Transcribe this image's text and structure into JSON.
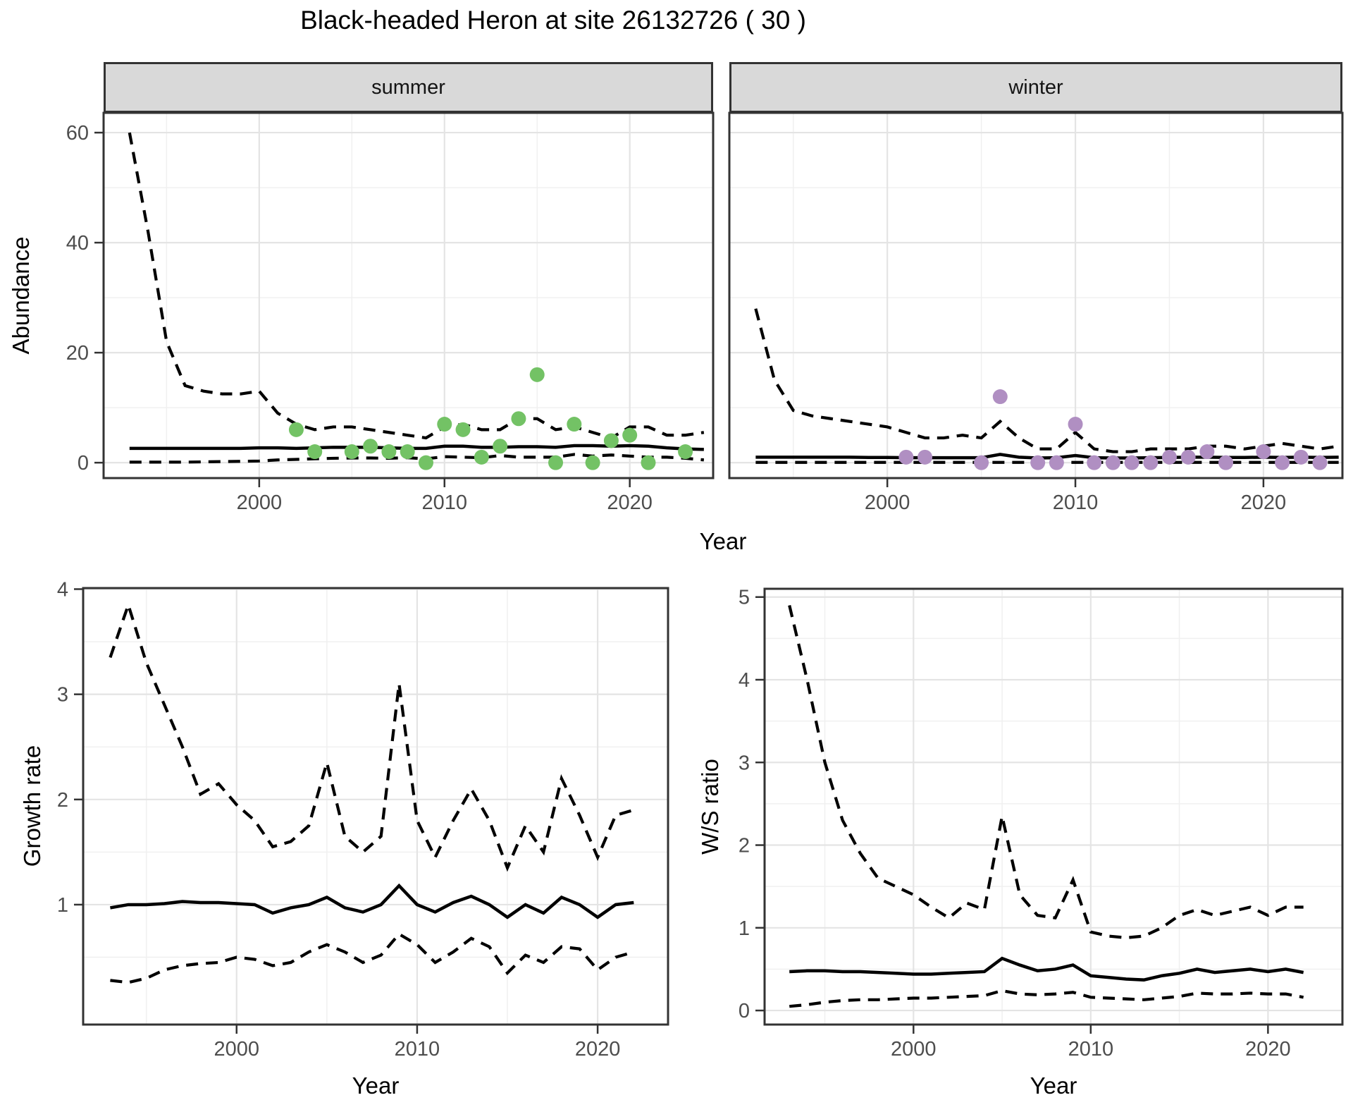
{
  "title": "Black-headed Heron at site 26132726 ( 30 )",
  "colors": {
    "summer_point": "#73c265",
    "winter_point": "#b08fc2",
    "line": "#000000",
    "strip_bg": "#d9d9d9",
    "grid_major": "#e4e4e4",
    "grid_minor": "#f0f0f0",
    "panel_border": "#333333",
    "tick_label": "#4d4d4d"
  },
  "chart_data": [
    {
      "id": "abundance_summer",
      "type": "line+scatter",
      "facet_label": "summer",
      "xlabel": "Year",
      "ylabel": "Abundance",
      "x_ticks": [
        2000,
        2010,
        2020
      ],
      "y_ticks": [
        0,
        20,
        40,
        60
      ],
      "xlim": [
        1991.6,
        2024.5
      ],
      "ylim": [
        -2.8,
        63.6
      ],
      "grid": true,
      "legend_position": "none",
      "line_years": [
        1993,
        1994,
        1995,
        1996,
        1997,
        1998,
        1999,
        2000,
        2001,
        2002,
        2003,
        2004,
        2005,
        2006,
        2007,
        2008,
        2009,
        2010,
        2011,
        2012,
        2013,
        2014,
        2015,
        2016,
        2017,
        2018,
        2019,
        2020,
        2021,
        2022,
        2023,
        2024
      ],
      "series": [
        {
          "name": "upper_95ci",
          "style": "dashed",
          "values": [
            60,
            42,
            22,
            14,
            13,
            12.5,
            12.5,
            13,
            9,
            7,
            6,
            6.5,
            6.5,
            6,
            5.5,
            5,
            4.5,
            6.5,
            7,
            6,
            6,
            8,
            8,
            6,
            6.5,
            5.5,
            4.5,
            6.5,
            6.5,
            5,
            5,
            5.5
          ]
        },
        {
          "name": "median",
          "style": "solid",
          "values": [
            2.6,
            2.6,
            2.6,
            2.6,
            2.6,
            2.6,
            2.6,
            2.7,
            2.7,
            2.6,
            2.7,
            2.8,
            2.8,
            2.8,
            2.7,
            2.6,
            2.6,
            3.0,
            3.0,
            2.8,
            2.8,
            2.9,
            2.9,
            2.8,
            3.1,
            3.1,
            3.0,
            3.1,
            3.0,
            2.7,
            2.5,
            2.4
          ]
        },
        {
          "name": "lower_95ci",
          "style": "dashed",
          "values": [
            0.1,
            0.1,
            0.1,
            0.1,
            0.15,
            0.2,
            0.25,
            0.3,
            0.5,
            0.6,
            0.7,
            0.8,
            0.85,
            0.85,
            0.8,
            0.9,
            0.7,
            1.1,
            1.0,
            0.9,
            1.3,
            1.0,
            1.0,
            1.0,
            1.5,
            1.2,
            1.4,
            1.2,
            1.0,
            1.0,
            0.8,
            0.5
          ]
        }
      ],
      "points": {
        "name": "observed_counts",
        "color": "#73c265",
        "years": [
          2002,
          2003,
          2005,
          2006,
          2007,
          2008,
          2009,
          2010,
          2011,
          2012,
          2013,
          2014,
          2015,
          2016,
          2017,
          2018,
          2019,
          2020,
          2021,
          2023
        ],
        "values": [
          6,
          2,
          2,
          3,
          2,
          2,
          0,
          7,
          6,
          1,
          3,
          8,
          16,
          0,
          7,
          0,
          4,
          5,
          0,
          2
        ]
      }
    },
    {
      "id": "abundance_winter",
      "type": "line+scatter",
      "facet_label": "winter",
      "xlabel": "Year",
      "ylabel": "Abundance",
      "x_ticks": [
        2000,
        2010,
        2020
      ],
      "y_ticks": [
        0,
        20,
        40,
        60
      ],
      "xlim": [
        1991.6,
        2024.2
      ],
      "ylim": [
        -2.8,
        63.6
      ],
      "grid": true,
      "legend_position": "none",
      "line_years": [
        1993,
        1994,
        1995,
        1996,
        1997,
        1998,
        1999,
        2000,
        2001,
        2002,
        2003,
        2004,
        2005,
        2006,
        2007,
        2008,
        2009,
        2010,
        2011,
        2012,
        2013,
        2014,
        2015,
        2016,
        2017,
        2018,
        2019,
        2020,
        2021,
        2022,
        2023,
        2024
      ],
      "series": [
        {
          "name": "upper_95ci",
          "style": "dashed",
          "values": [
            28,
            15,
            9.5,
            8.5,
            8,
            7.5,
            7,
            6.5,
            5.5,
            4.5,
            4.5,
            5,
            4.5,
            7.5,
            4.5,
            2.5,
            2.5,
            5.5,
            2.5,
            2,
            2,
            2.5,
            2.5,
            2.5,
            3,
            3,
            2.5,
            3,
            3.5,
            3,
            2.5,
            3
          ]
        },
        {
          "name": "median",
          "style": "solid",
          "values": [
            1,
            1,
            1,
            1,
            1,
            1,
            0.95,
            0.95,
            0.9,
            0.9,
            0.9,
            0.9,
            0.9,
            1.5,
            1.0,
            0.85,
            0.9,
            1.3,
            0.9,
            0.85,
            0.85,
            0.9,
            0.95,
            1.0,
            1.0,
            0.95,
            0.95,
            1.0,
            0.95,
            1.0,
            0.95,
            1.0
          ]
        },
        {
          "name": "lower_95ci",
          "style": "dashed",
          "values": [
            0.05,
            0.05,
            0.05,
            0.05,
            0.05,
            0.05,
            0.05,
            0.05,
            0.05,
            0.05,
            0.05,
            0.05,
            0.05,
            0.05,
            0.05,
            0.05,
            0.05,
            0.05,
            0.05,
            0.05,
            0.05,
            0.05,
            0.05,
            0.05,
            0.05,
            0.05,
            0.05,
            0.05,
            0.05,
            0.05,
            0.05,
            0.05
          ]
        }
      ],
      "points": {
        "name": "observed_counts",
        "color": "#b08fc2",
        "years": [
          2001,
          2002,
          2005,
          2006,
          2008,
          2009,
          2010,
          2011,
          2012,
          2013,
          2014,
          2015,
          2016,
          2017,
          2018,
          2020,
          2021,
          2022,
          2023
        ],
        "values": [
          1,
          1,
          0,
          12,
          0,
          0,
          7,
          0,
          0,
          0,
          0,
          1,
          1,
          2,
          0,
          2,
          0,
          1,
          0
        ]
      }
    },
    {
      "id": "growth_rate",
      "type": "line",
      "facet_label": "",
      "xlabel": "Year",
      "ylabel": "Growth rate",
      "x_ticks": [
        2000,
        2010,
        2020
      ],
      "y_ticks": [
        1,
        2,
        3,
        4
      ],
      "xlim": [
        1991.5,
        2023.9
      ],
      "ylim": [
        -0.14,
        4.01
      ],
      "grid": true,
      "legend_position": "none",
      "line_years": [
        1993,
        1994,
        1995,
        1996,
        1997,
        1998,
        1999,
        2000,
        2001,
        2002,
        2003,
        2004,
        2005,
        2006,
        2007,
        2008,
        2009,
        2010,
        2011,
        2012,
        2013,
        2014,
        2015,
        2016,
        2017,
        2018,
        2019,
        2020,
        2021,
        2022
      ],
      "series": [
        {
          "name": "upper_95ci",
          "style": "dashed",
          "values": [
            3.35,
            3.85,
            3.3,
            2.9,
            2.5,
            2.05,
            2.15,
            1.95,
            1.8,
            1.55,
            1.6,
            1.75,
            2.35,
            1.65,
            1.5,
            1.65,
            3.1,
            1.8,
            1.45,
            1.8,
            2.1,
            1.8,
            1.35,
            1.75,
            1.5,
            2.2,
            1.85,
            1.45,
            1.85,
            1.9
          ]
        },
        {
          "name": "median",
          "style": "solid",
          "values": [
            0.97,
            1.0,
            1.0,
            1.01,
            1.03,
            1.02,
            1.02,
            1.01,
            1.0,
            0.92,
            0.97,
            1.0,
            1.07,
            0.97,
            0.93,
            1.0,
            1.18,
            1.0,
            0.93,
            1.02,
            1.08,
            1.0,
            0.88,
            1.0,
            0.92,
            1.07,
            1.0,
            0.88,
            1.0,
            1.02
          ]
        },
        {
          "name": "lower_95ci",
          "style": "dashed",
          "values": [
            0.28,
            0.26,
            0.3,
            0.38,
            0.42,
            0.44,
            0.45,
            0.5,
            0.48,
            0.42,
            0.45,
            0.55,
            0.62,
            0.55,
            0.45,
            0.52,
            0.72,
            0.62,
            0.45,
            0.55,
            0.68,
            0.6,
            0.35,
            0.52,
            0.45,
            0.6,
            0.58,
            0.38,
            0.5,
            0.55
          ]
        }
      ]
    },
    {
      "id": "ws_ratio",
      "type": "line",
      "facet_label": "",
      "xlabel": "Year",
      "ylabel": "W/S ratio",
      "x_ticks": [
        2000,
        2010,
        2020
      ],
      "y_ticks": [
        0,
        1,
        2,
        3,
        4,
        5
      ],
      "xlim": [
        1991.6,
        2024.2
      ],
      "ylim": [
        -0.17,
        5.1
      ],
      "grid": true,
      "legend_position": "none",
      "line_years": [
        1993,
        1994,
        1995,
        1996,
        1997,
        1998,
        1999,
        2000,
        2001,
        2002,
        2003,
        2004,
        2005,
        2006,
        2007,
        2008,
        2009,
        2010,
        2011,
        2012,
        2013,
        2014,
        2015,
        2016,
        2017,
        2018,
        2019,
        2020,
        2021,
        2022
      ],
      "series": [
        {
          "name": "upper_95ci",
          "style": "dashed",
          "values": [
            4.9,
            4.0,
            3.0,
            2.3,
            1.9,
            1.6,
            1.5,
            1.4,
            1.25,
            1.12,
            1.3,
            1.22,
            2.35,
            1.4,
            1.15,
            1.12,
            1.58,
            0.95,
            0.9,
            0.88,
            0.9,
            1.0,
            1.15,
            1.22,
            1.15,
            1.2,
            1.25,
            1.15,
            1.25,
            1.25
          ]
        },
        {
          "name": "median",
          "style": "solid",
          "values": [
            0.47,
            0.48,
            0.48,
            0.47,
            0.47,
            0.46,
            0.45,
            0.44,
            0.44,
            0.45,
            0.46,
            0.47,
            0.63,
            0.55,
            0.48,
            0.5,
            0.55,
            0.42,
            0.4,
            0.38,
            0.37,
            0.42,
            0.45,
            0.5,
            0.46,
            0.48,
            0.5,
            0.47,
            0.5,
            0.46
          ]
        },
        {
          "name": "lower_95ci",
          "style": "dashed",
          "values": [
            0.05,
            0.07,
            0.1,
            0.12,
            0.13,
            0.13,
            0.14,
            0.15,
            0.15,
            0.16,
            0.17,
            0.18,
            0.24,
            0.2,
            0.19,
            0.2,
            0.22,
            0.16,
            0.15,
            0.14,
            0.13,
            0.15,
            0.17,
            0.21,
            0.2,
            0.2,
            0.21,
            0.2,
            0.2,
            0.16
          ]
        }
      ]
    }
  ]
}
